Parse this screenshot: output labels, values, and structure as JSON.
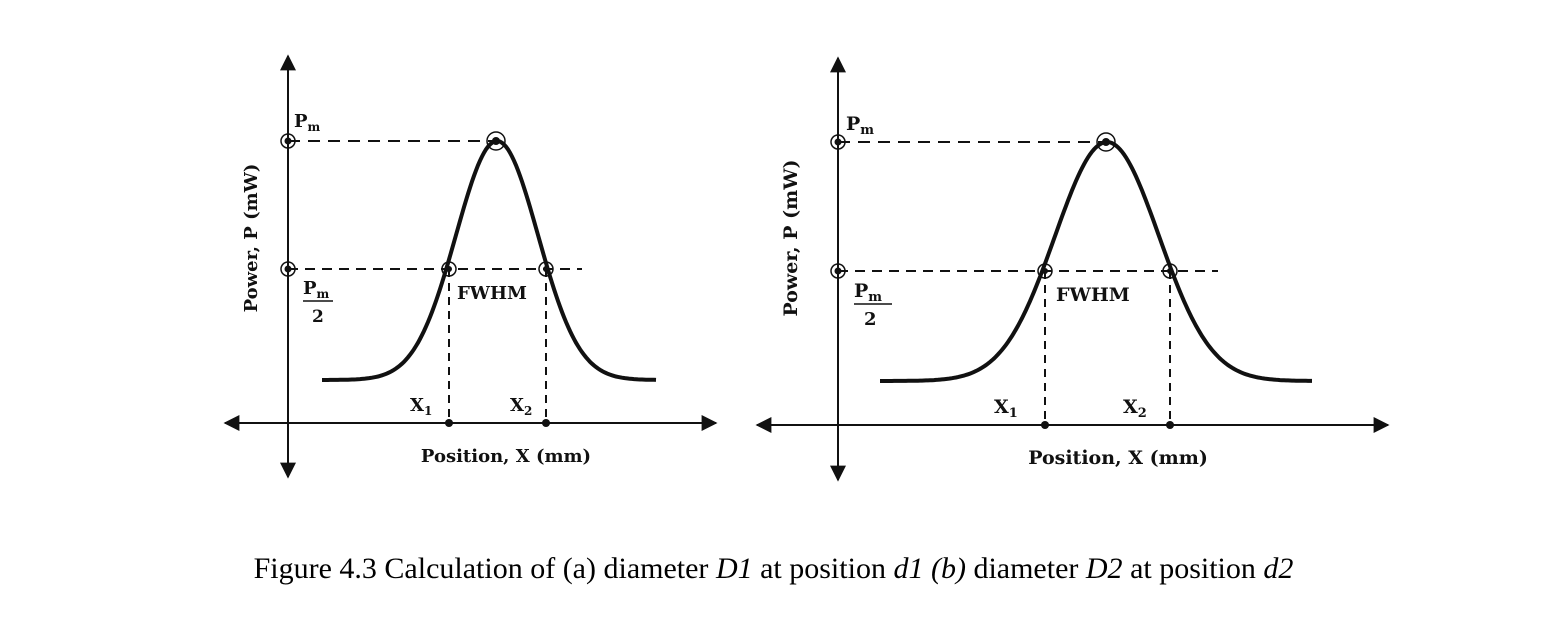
{
  "panels": [
    {
      "ylabel": "Power, P (mW)",
      "xlabel": "Position, X (mm)",
      "peak_label": "P",
      "peak_label_sub": "m",
      "half_label_num": "P",
      "half_label_num_sub": "m",
      "half_label_den": "2",
      "fwhm_label": "FWHM",
      "x1_label": "X",
      "x1_sub": "1",
      "x2_label": "X",
      "x2_sub": "2"
    },
    {
      "ylabel": "Power, P (mW)",
      "xlabel": "Position, X (mm)",
      "peak_label": "P",
      "peak_label_sub": "m",
      "half_label_num": "P",
      "half_label_num_sub": "m",
      "half_label_den": "2",
      "fwhm_label": "FWHM",
      "x1_label": "X",
      "x1_sub": "1",
      "x2_label": "X",
      "x2_sub": "2"
    }
  ],
  "caption": {
    "prefix": "Figure 4.3 Calculation of (a) diameter ",
    "d1": "D1",
    "mid1": " at position ",
    "pos1": "d1 (b)",
    "mid2": " diameter ",
    "d2": "D2",
    "mid3": " at position ",
    "pos2": "d2"
  }
}
